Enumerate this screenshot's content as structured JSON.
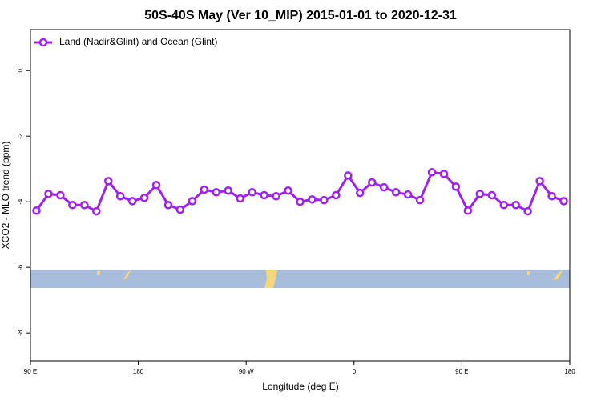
{
  "chart_data": {
    "type": "line",
    "title": "50S-40S May (Ver 10_MIP)   2015-01-01 to 2020-12-31",
    "x_label": "Longitude (deg E)",
    "y_label": "XCO2 - MLO trend (ppm)",
    "x": [
      95,
      105,
      115,
      125,
      135,
      145,
      155,
      165,
      175,
      185,
      195,
      205,
      215,
      225,
      235,
      245,
      255,
      265,
      275,
      285,
      295,
      305,
      315,
      325,
      335,
      345,
      355,
      365,
      375,
      385,
      395,
      405,
      415,
      425,
      435,
      445,
      455,
      465,
      475,
      485,
      495,
      505,
      515,
      525,
      535
    ],
    "series": [
      {
        "name": "Land (Nadir&Glint) and Ocean (Glint)",
        "color": "#a020f0",
        "values": [
          -4.27,
          -3.76,
          -3.8,
          -4.1,
          -4.1,
          -4.29,
          -3.37,
          -3.83,
          -3.98,
          -3.88,
          -3.49,
          -4.1,
          -4.24,
          -3.98,
          -3.63,
          -3.71,
          -3.66,
          -3.9,
          -3.71,
          -3.8,
          -3.83,
          -3.66,
          -4.0,
          -3.93,
          -3.95,
          -3.8,
          -3.2,
          -3.73,
          -3.41,
          -3.56,
          -3.71,
          -3.78,
          -3.95,
          -3.1,
          -3.15,
          -3.54,
          -4.27,
          -3.76,
          -3.8,
          -4.1,
          -4.1,
          -4.29,
          -3.37,
          -3.83,
          -3.98
        ]
      }
    ],
    "xlim": [
      90,
      540
    ],
    "xticks": [
      {
        "value": 90,
        "label": "90 E"
      },
      180,
      {
        "value": 270,
        "label": "90 W"
      },
      {
        "value": 360,
        "label": "0"
      },
      {
        "value": 450,
        "label": "90 E"
      },
      {
        "value": 540,
        "label": "180"
      }
    ],
    "ylim": [
      -8.85,
      1.25
    ],
    "yticks": [
      0,
      -2,
      -4,
      -6,
      -8
    ],
    "legend": "top-left"
  }
}
